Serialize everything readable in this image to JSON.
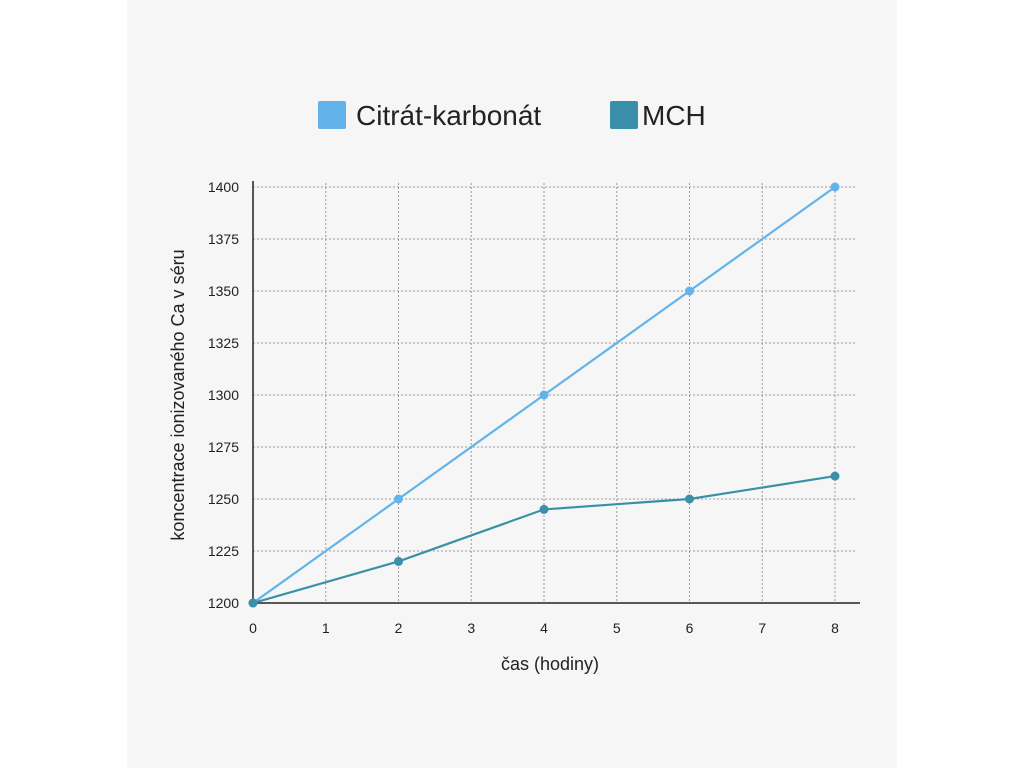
{
  "chart_data": {
    "type": "line",
    "title": "",
    "xlabel": "čas (hodiny)",
    "ylabel": "koncentrace ionizovaného Ca v séru",
    "xlim": [
      0,
      8
    ],
    "ylim": [
      1200,
      1400
    ],
    "x_ticks": [
      0,
      1,
      2,
      3,
      4,
      5,
      6,
      7,
      8
    ],
    "y_ticks": [
      1200,
      1225,
      1250,
      1275,
      1300,
      1325,
      1350,
      1375,
      1400
    ],
    "grid": true,
    "legend_position": "top",
    "series": [
      {
        "name": "Citrát-karbonát",
        "color": "#63b3ea",
        "points": [
          [
            0,
            1200
          ],
          [
            2,
            1250
          ],
          [
            4,
            1300
          ],
          [
            6,
            1350
          ],
          [
            8,
            1400
          ]
        ]
      },
      {
        "name": "MCH",
        "color": "#3a90a8",
        "points": [
          [
            0,
            1200
          ],
          [
            2,
            1220
          ],
          [
            4,
            1245
          ],
          [
            6,
            1250
          ],
          [
            8,
            1261
          ]
        ]
      }
    ]
  }
}
